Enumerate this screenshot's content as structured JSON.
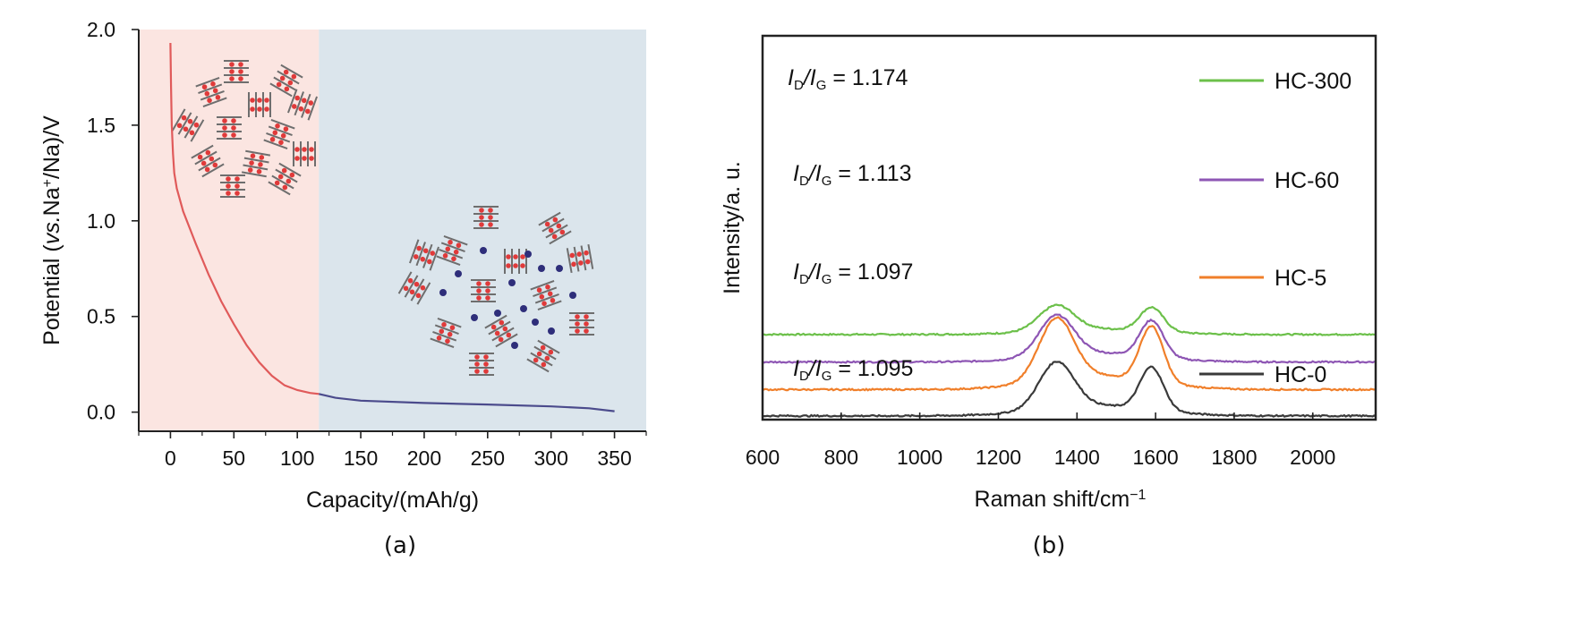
{
  "chart_data": [
    {
      "type": "line",
      "panel_label": "(a)",
      "xlabel": "Capacity/(mAh/g)",
      "ylabel_parts": {
        "pre": "Potential (",
        "italic": "vs.",
        "mid": "Na",
        "sup": "+",
        "post": "/Na)/V"
      },
      "xlim": [
        -25,
        375
      ],
      "ylim": [
        -0.1,
        2.0
      ],
      "x_ticks": [
        0,
        50,
        100,
        150,
        200,
        250,
        300,
        350
      ],
      "y_ticks": [
        "0.0",
        "0.5",
        "1.0",
        "1.5",
        "2.0"
      ],
      "regions": [
        {
          "x_range": [
            -25,
            117
          ],
          "color": "#fbe5e1"
        },
        {
          "x_range": [
            117,
            375
          ],
          "color": "#dbe5ec"
        }
      ],
      "series": [
        {
          "color": "#e05a5a",
          "points": [
            [
              0,
              1.93
            ],
            [
              0.5,
              1.7
            ],
            [
              1,
              1.5
            ],
            [
              2,
              1.35
            ],
            [
              3,
              1.25
            ],
            [
              5,
              1.17
            ],
            [
              10,
              1.05
            ],
            [
              20,
              0.88
            ],
            [
              30,
              0.72
            ],
            [
              40,
              0.58
            ],
            [
              50,
              0.46
            ],
            [
              60,
              0.35
            ],
            [
              70,
              0.26
            ],
            [
              80,
              0.19
            ],
            [
              90,
              0.14
            ],
            [
              100,
              0.115
            ],
            [
              110,
              0.1
            ],
            [
              117,
              0.095
            ]
          ]
        },
        {
          "color": "#4b4b8c",
          "points": [
            [
              117,
              0.095
            ],
            [
              130,
              0.075
            ],
            [
              150,
              0.06
            ],
            [
              200,
              0.048
            ],
            [
              250,
              0.04
            ],
            [
              300,
              0.03
            ],
            [
              330,
              0.02
            ],
            [
              350,
              0.005
            ]
          ]
        }
      ]
    },
    {
      "type": "line",
      "panel_label": "(b)",
      "xlabel": "Raman shift/cm",
      "xlabel_sup": "−1",
      "ylabel": "Intensity/a. u.",
      "xlim": [
        600,
        2160
      ],
      "x_ticks": [
        600,
        800,
        1000,
        1200,
        1400,
        1600,
        1800,
        2000
      ],
      "grid": false,
      "series": [
        {
          "name": "HC-300",
          "color": "#6cc04a",
          "baseline": 3.4,
          "d_peak": 1.0,
          "g_peak": 0.95,
          "ratio_label": "1.174"
        },
        {
          "name": "HC-60",
          "color": "#8e56b4",
          "baseline": 2.3,
          "d_peak": 1.6,
          "g_peak": 1.45,
          "ratio_label": "1.113"
        },
        {
          "name": "HC-5",
          "color": "#f07f2a",
          "baseline": 1.2,
          "d_peak": 2.45,
          "g_peak": 2.2,
          "ratio_label": "1.097"
        },
        {
          "name": "HC-0",
          "color": "#3a3a3a",
          "baseline": 0.15,
          "d_peak": 1.85,
          "g_peak": 1.7,
          "ratio_label": "1.095"
        }
      ],
      "ratio_prefix_I": "I",
      "ratio_sub_D": "D",
      "ratio_slash": "/",
      "ratio_sub_G": "G",
      "ratio_eq": " = "
    }
  ]
}
